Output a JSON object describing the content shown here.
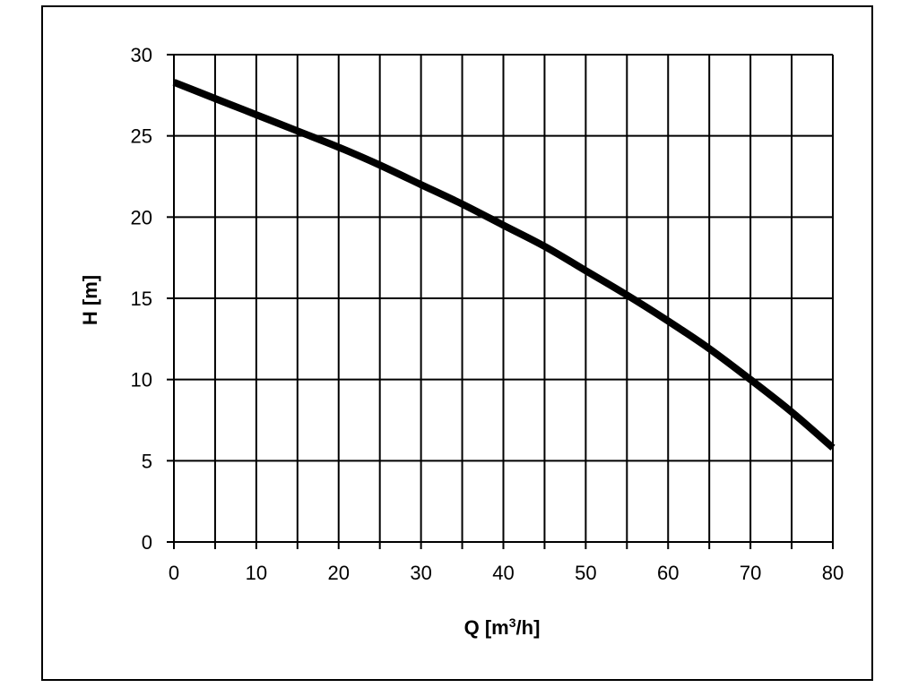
{
  "chart_data": {
    "type": "line",
    "title": "",
    "xlabel": "Q [m",
    "xlabel_superscript": "3",
    "xlabel_suffix": "/h]",
    "ylabel": "H [m]",
    "xlim": [
      0,
      80
    ],
    "ylim": [
      0,
      30
    ],
    "x_ticks": [
      0,
      10,
      20,
      30,
      40,
      50,
      60,
      70,
      80
    ],
    "y_ticks": [
      0,
      5,
      10,
      15,
      20,
      25,
      30
    ],
    "x_gridlines": [
      0,
      5,
      10,
      15,
      20,
      25,
      30,
      35,
      40,
      45,
      50,
      55,
      60,
      65,
      70,
      75,
      80
    ],
    "y_gridlines": [
      0,
      5,
      10,
      15,
      20,
      25,
      30
    ],
    "grid": true,
    "legend": "none",
    "line_color": "#000000",
    "series": [
      {
        "x": [
          0,
          5,
          10,
          15,
          20,
          25,
          30,
          35,
          40,
          45,
          50,
          55,
          60,
          65,
          70,
          75,
          80
        ],
        "y": [
          28.3,
          27.3,
          26.3,
          25.3,
          24.3,
          23.2,
          22.0,
          20.8,
          19.5,
          18.2,
          16.7,
          15.2,
          13.6,
          11.9,
          10.0,
          8.0,
          5.8
        ]
      }
    ]
  }
}
